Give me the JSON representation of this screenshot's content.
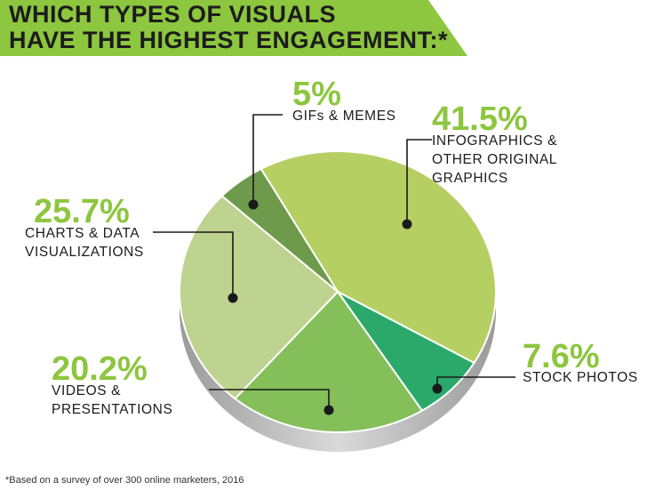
{
  "title": {
    "line1": "WHICH TYPES OF VISUALS",
    "line2": "HAVE THE HIGHEST ENGAGEMENT:*"
  },
  "footnote": "*Based on a survey of over 300 online marketers, 2016",
  "colors": {
    "banner": "#8dc63f",
    "percent_text": "#8dc63f",
    "leader_line": "#1a1a1a",
    "rim_dark": "#9b9b9b",
    "rim_light": "#d9d9d9"
  },
  "chart_data": {
    "type": "pie",
    "style": "3d",
    "slices": [
      {
        "id": "infographics",
        "value": 41.5,
        "percent_label": "41.5%",
        "label_lines": [
          "INFOGRAPHICS &",
          "OTHER ORIGINAL",
          "GRAPHICS"
        ],
        "color": "#b6cf63"
      },
      {
        "id": "stock-photos",
        "value": 7.6,
        "percent_label": "7.6%",
        "label_lines": [
          "STOCK PHOTOS"
        ],
        "color": "#2aa96b"
      },
      {
        "id": "videos",
        "value": 20.2,
        "percent_label": "20.2%",
        "label_lines": [
          "VIDEOS &",
          "PRESENTATIONS"
        ],
        "color": "#84bf5a"
      },
      {
        "id": "charts",
        "value": 25.7,
        "percent_label": "25.7%",
        "label_lines": [
          "CHARTS & DATA",
          "VISUALIZATIONS"
        ],
        "color": "#bed38f"
      },
      {
        "id": "gifs",
        "value": 5.0,
        "percent_label": "5%",
        "label_lines": [
          "GIFs & MEMES"
        ],
        "color": "#6e9a4b"
      }
    ]
  }
}
